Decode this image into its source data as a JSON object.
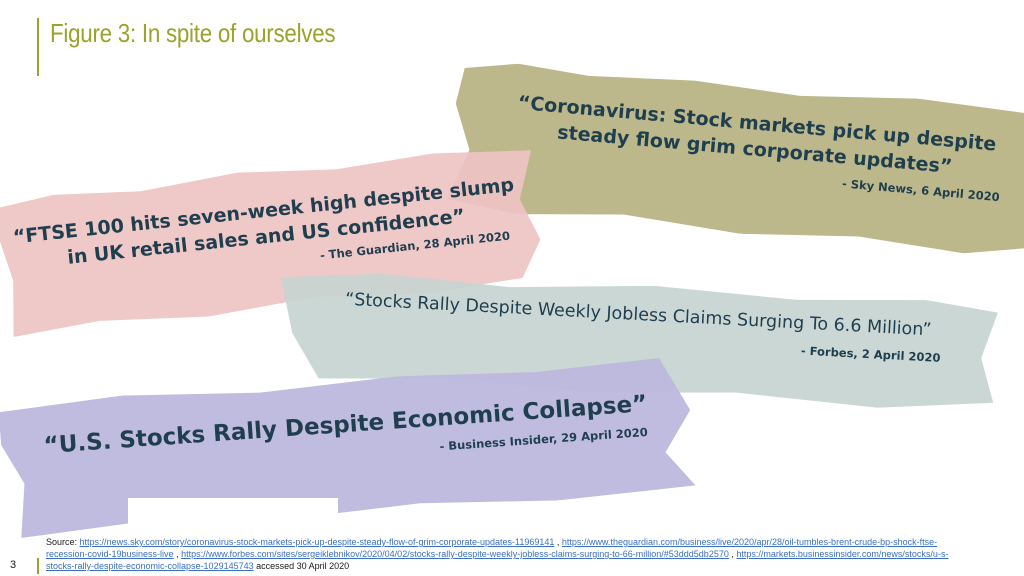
{
  "slide": {
    "title": "Figure 3: In spite of ourselves",
    "page_number": "3"
  },
  "quotes": [
    {
      "text": "“Coronavirus: Stock markets pick up despite steady flow grim corporate updates”",
      "source": "- Sky News, 6 April 2020"
    },
    {
      "text": "“FTSE 100 hits seven-week high despite slump in UK retail sales and US confidence”",
      "source": "- The Guardian, 28 April 2020"
    },
    {
      "text": "“Stocks Rally Despite Weekly Jobless Claims Surging To 6.6 Million”",
      "source": "- Forbes, 2 April 2020"
    },
    {
      "text": "“U.S. Stocks Rally Despite Economic Collapse”",
      "source": "- Business Insider, 29 April 2020"
    }
  ],
  "footer": {
    "source_label": "Source:",
    "links": [
      "https://news.sky.com/story/coronavirus-stock-markets-pick-up-despite-steady-flow-of-grim-corporate-updates-11969141",
      "https://www.theguardian.com/business/live/2020/apr/28/oil-tumbles-brent-crude-bp-shock-ftse-recession-covid-19business-live",
      "https://www.forbes.com/sites/sergeiklebnikov/2020/04/02/stocks-rally-despite-weekly-jobless-claims-surging-to-66-million/#53ddd5db2570",
      "https://markets.businessinsider.com/news/stocks/u-s-stocks-rally-despite-economic-collapse-1029145743"
    ],
    "accessed": "accessed 30 April 2020"
  },
  "colors": {
    "accent": "#9aa32a",
    "sky_strip": "#bcb88b",
    "guardian_strip": "#eec4c4",
    "forbes_strip": "#c7d4d0",
    "insider_strip": "#bdb8de",
    "quote_text": "#1f3e4e",
    "link": "#3a6fc4"
  }
}
